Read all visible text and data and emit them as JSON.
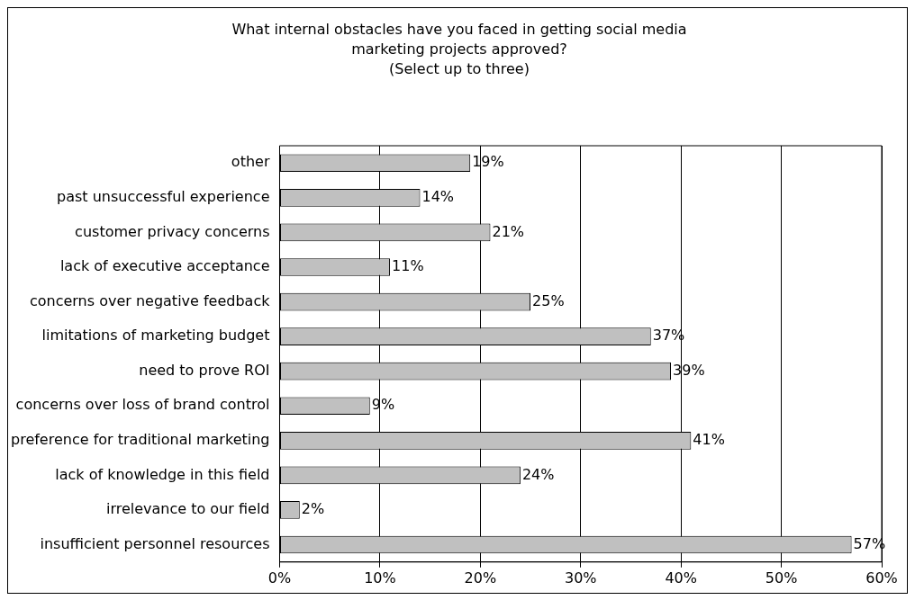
{
  "chart_data": {
    "type": "bar",
    "orientation": "horizontal",
    "title": "What internal obstacles have you faced in getting social media marketing projects approved?",
    "subtitle": "(Select up to three)",
    "categories": [
      "other",
      "past unsuccessful experience",
      "customer privacy concerns",
      "lack of executive acceptance",
      "concerns over negative feedback",
      "limitations of marketing budget",
      "need to prove ROI",
      "concerns over loss of brand control",
      "preference for traditional marketing",
      "lack of knowledge in this field",
      "irrelevance to our field",
      "insufficient personnel resources"
    ],
    "values": [
      19,
      14,
      21,
      11,
      25,
      37,
      39,
      9,
      41,
      24,
      2,
      57
    ],
    "value_labels": [
      "19%",
      "14%",
      "21%",
      "11%",
      "25%",
      "37%",
      "39%",
      "9%",
      "41%",
      "24%",
      "2%",
      "57%"
    ],
    "color": "#c0c0c0",
    "xlim": [
      0,
      60
    ],
    "xticks": [
      {
        "value": 0,
        "label": "0%"
      },
      {
        "value": 10,
        "label": "10%"
      },
      {
        "value": 20,
        "label": "20%"
      },
      {
        "value": 30,
        "label": "30%"
      },
      {
        "value": 40,
        "label": "40%"
      },
      {
        "value": 50,
        "label": "50%"
      },
      {
        "value": 60,
        "label": "60%"
      }
    ],
    "grid": "x",
    "legend": false
  }
}
